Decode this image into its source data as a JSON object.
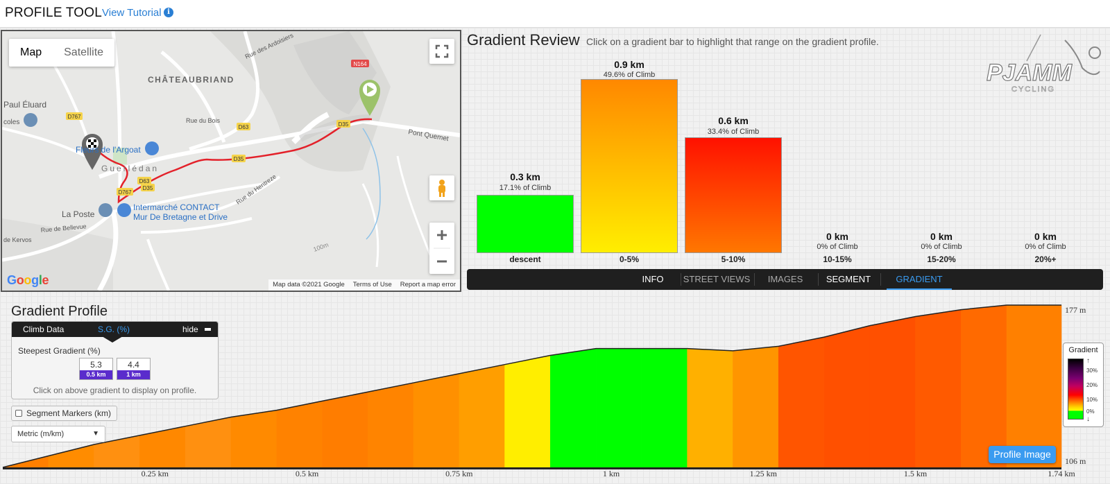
{
  "header": {
    "title": "PROFILE TOOL",
    "tutorial_link": "View Tutorial",
    "info_icon": "i"
  },
  "map": {
    "type_buttons": [
      "Map",
      "Satellite"
    ],
    "labels": {
      "town": "CHÂTEAUBRIAND",
      "poi1": "Fleurs de l'Argoat",
      "poi2": "Intermarché CONTACT",
      "poi2b": "Mur De Bretagne et Drive",
      "poi3": "La Poste",
      "place": "Guerlédan",
      "paul": "Paul Éluard",
      "ecoles": "coles",
      "pont": "Pont Quemet",
      "rue1": "Rue des Ardoisiers",
      "rue2": "Rue du Bois",
      "rue3": "Rue de Bellevue",
      "rue4": "de Kervos",
      "rue5": "Rue du Hentreze",
      "road1": "D767",
      "road2": "D63",
      "road3": "D35",
      "road4": "N164",
      "hundred": "100m"
    },
    "footer": [
      "Map data ©2021 Google",
      "Terms of Use",
      "Report a map error"
    ],
    "google": "Google",
    "icons": [
      "fullscreen-icon",
      "pegman-icon",
      "zoom-in-icon",
      "zoom-out-icon",
      "start-marker-icon",
      "finish-marker-icon"
    ]
  },
  "gradient_review": {
    "title": "Gradient Review",
    "hint": "Click on a gradient bar to highlight that range on the gradient profile.",
    "bars": [
      {
        "category": "descent",
        "km": "0.3 km",
        "pct": "17.1% of Climb",
        "value_km": 0.3,
        "color_top": "#00ff00",
        "color_bottom": "#00ff00"
      },
      {
        "category": "0-5%",
        "km": "0.9 km",
        "pct": "49.6% of Climb",
        "value_km": 0.9,
        "color_top": "#ff8800",
        "color_bottom": "#ffee00"
      },
      {
        "category": "5-10%",
        "km": "0.6 km",
        "pct": "33.4% of Climb",
        "value_km": 0.6,
        "color_top": "#ff1100",
        "color_bottom": "#ff7700"
      },
      {
        "category": "10-15%",
        "km": "0 km",
        "pct": "0% of Climb",
        "value_km": 0
      },
      {
        "category": "15-20%",
        "km": "0 km",
        "pct": "0% of Climb",
        "value_km": 0
      },
      {
        "category": "20%+",
        "km": "0 km",
        "pct": "0% of Climb",
        "value_km": 0
      }
    ]
  },
  "tabs": [
    {
      "label": "INFO",
      "state": "white"
    },
    {
      "label": "STREET VIEWS",
      "state": "dim"
    },
    {
      "label": "IMAGES",
      "state": "dim"
    },
    {
      "label": "SEGMENT",
      "state": "white"
    },
    {
      "label": "GRADIENT",
      "state": "active"
    }
  ],
  "profile": {
    "title": "Gradient Profile",
    "climb_panel": {
      "tab1": "Climb Data",
      "tab2": "S.G. (%)",
      "hide": "hide",
      "steepest_label": "Steepest Gradient (%)",
      "values": [
        {
          "value": "5.3",
          "dist": "0.5 km"
        },
        {
          "value": "4.4",
          "dist": "1 km"
        }
      ],
      "hint": "Click on above gradient to display on profile."
    },
    "segment_markers": "Segment Markers (km)",
    "segment_markers_checked": false,
    "units": "Metric (m/km)",
    "legend": {
      "title": "Gradient",
      "ticks": [
        "30%",
        "20%",
        "10%",
        "0%"
      ],
      "up_icon": "↑",
      "down_icon": "↓"
    },
    "profile_button": "Profile Image",
    "elevation_max": "177 m",
    "elevation_min": "106 m",
    "km_ticks": [
      "0.25 km",
      "0.5 km",
      "0.75 km",
      "1 km",
      "1.25 km",
      "1.5 km",
      "1.74 km"
    ]
  },
  "chart_data": {
    "type": "area",
    "x": [
      0,
      0.075,
      0.15,
      0.225,
      0.3,
      0.375,
      0.45,
      0.525,
      0.6,
      0.675,
      0.75,
      0.825,
      0.9,
      0.975,
      1.05,
      1.125,
      1.2,
      1.275,
      1.35,
      1.425,
      1.5,
      1.575,
      1.65,
      1.74
    ],
    "series": [
      {
        "values": [
          106,
          111,
          116,
          120,
          124,
          128,
          131,
          135,
          139,
          143,
          147,
          151,
          155,
          158,
          158,
          158,
          157,
          159,
          163,
          168,
          172,
          175,
          177,
          177
        ]
      }
    ],
    "segment_colors": [
      "#ff7f00",
      "#ff8c00",
      "#ff9010",
      "#ff8800",
      "#ff9010",
      "#ff8a00",
      "#ff8200",
      "#ff7d00",
      "#ff8400",
      "#ff9000",
      "#ff9e00",
      "#ffee00",
      "#00ff00",
      "#00ff00",
      "#00ff00",
      "#ffb000",
      "#ff9500",
      "#ff5500",
      "#ff5000",
      "#ff5000",
      "#ff5a00",
      "#ff6a00",
      "#ff8000"
    ],
    "ylim": [
      106,
      177
    ],
    "xlim": [
      0,
      1.74
    ],
    "tick_labels": [
      "0.25 km",
      "0.5 km",
      "0.75 km",
      "1 km",
      "1.25 km",
      "1.5 km",
      "1.74 km"
    ]
  }
}
